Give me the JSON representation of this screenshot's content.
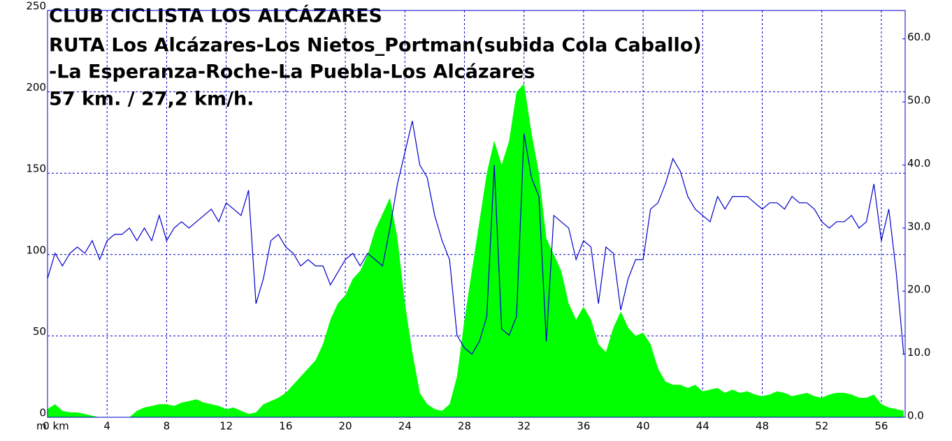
{
  "chart_data": {
    "type": "profile",
    "title": [
      "CLUB CICLISTA LOS ALCÁZARES",
      "RUTA Los Alcázares-Los Nietos_Portman(subida Cola Caballo)",
      "-La Esperanza-Roche-La Puebla-Los Alcázares",
      "57 km. / 27,2 km/h."
    ],
    "y_label": "m",
    "x": [
      0,
      0.5,
      1,
      1.5,
      2,
      2.5,
      3,
      3.5,
      4,
      4.5,
      5,
      5.5,
      6,
      6.5,
      7,
      7.5,
      8,
      8.5,
      9,
      9.5,
      10,
      10.5,
      11,
      11.5,
      12,
      12.5,
      13,
      13.5,
      14,
      14.5,
      15,
      15.5,
      16,
      16.5,
      17,
      17.5,
      18,
      18.5,
      19,
      19.5,
      20,
      20.5,
      21,
      21.5,
      22,
      22.5,
      23,
      23.5,
      24,
      24.5,
      25,
      25.5,
      26,
      26.5,
      27,
      27.5,
      28,
      28.5,
      29,
      29.5,
      30,
      30.5,
      31,
      31.5,
      32,
      32.5,
      33,
      33.5,
      34,
      34.5,
      35,
      35.5,
      36,
      36.5,
      37,
      37.5,
      38,
      38.5,
      39,
      39.5,
      40,
      40.5,
      41,
      41.5,
      42,
      42.5,
      43,
      43.5,
      44,
      44.5,
      45,
      45.5,
      46,
      46.5,
      47,
      47.5,
      48,
      48.5,
      49,
      49.5,
      50,
      50.5,
      51,
      51.5,
      52,
      52.5,
      53,
      53.5,
      54,
      54.5,
      55,
      55.5,
      56,
      56.5,
      57,
      57.5
    ],
    "series": [
      {
        "color": "#00ff00",
        "kind": "area",
        "values": [
          5,
          8,
          4,
          3,
          3,
          2,
          1,
          0,
          0,
          0,
          0,
          0,
          4,
          6,
          7,
          8,
          8,
          7,
          9,
          10,
          11,
          9,
          8,
          7,
          5,
          6,
          4,
          2,
          3,
          8,
          10,
          12,
          15,
          20,
          25,
          30,
          35,
          45,
          60,
          70,
          75,
          85,
          90,
          100,
          115,
          125,
          135,
          110,
          70,
          40,
          15,
          8,
          5,
          4,
          8,
          25,
          60,
          90,
          120,
          150,
          170,
          155,
          170,
          200,
          205,
          175,
          150,
          110,
          100,
          90,
          70,
          60,
          68,
          60,
          45,
          40,
          55,
          65,
          55,
          50,
          52,
          45,
          30,
          22,
          20,
          20,
          18,
          20,
          16,
          17,
          18,
          15,
          17,
          15,
          16,
          14,
          13,
          14,
          16,
          15,
          13,
          14,
          15,
          13,
          12,
          14,
          15,
          15,
          14,
          12,
          12,
          14,
          8,
          6,
          5,
          4
        ]
      },
      {
        "color": "#0000cc",
        "kind": "line",
        "axis": "y2",
        "values": [
          22,
          26,
          24,
          26,
          27,
          26,
          28,
          25,
          28,
          29,
          29,
          30,
          28,
          30,
          28,
          32,
          28,
          30,
          31,
          30,
          31,
          32,
          33,
          31,
          34,
          33,
          32,
          36,
          18,
          22,
          28,
          29,
          27,
          26,
          24,
          25,
          24,
          24,
          21,
          23,
          25,
          26,
          24,
          26,
          25,
          24,
          30,
          37,
          42,
          47,
          40,
          38,
          32,
          28,
          25,
          13,
          11,
          10,
          12,
          16,
          40,
          14,
          13,
          16,
          45,
          38,
          35,
          12,
          32,
          31,
          30,
          25,
          28,
          27,
          18,
          27,
          26,
          17,
          22,
          25,
          25,
          33,
          34,
          37,
          41,
          39,
          35,
          33,
          32,
          31,
          35,
          33,
          35,
          35,
          35,
          34,
          33,
          34,
          34,
          33,
          35,
          34,
          34,
          33,
          31,
          30,
          31,
          31,
          32,
          30,
          31,
          37,
          28,
          33,
          23,
          10
        ]
      }
    ],
    "xlim": [
      0,
      57.6
    ],
    "xticks": [
      {
        "value": 0,
        "label": "0 km"
      },
      4,
      8,
      12,
      16,
      20,
      24,
      28,
      32,
      36,
      40,
      44,
      48,
      52,
      56
    ],
    "ylim": [
      0,
      250
    ],
    "yticks": [
      0,
      50,
      100,
      150,
      200,
      250
    ],
    "y2lim": [
      0,
      64.5
    ],
    "y2ticks": [
      {
        "value": 0,
        "label": "0.0"
      },
      {
        "value": 10,
        "label": "10.0"
      },
      {
        "value": 20,
        "label": "20.0"
      },
      {
        "value": 30,
        "label": "30.0"
      },
      {
        "value": 40,
        "label": "40.0"
      },
      {
        "value": 50,
        "label": "50.0"
      },
      {
        "value": 60,
        "label": "60.0"
      }
    ],
    "grid": true
  }
}
